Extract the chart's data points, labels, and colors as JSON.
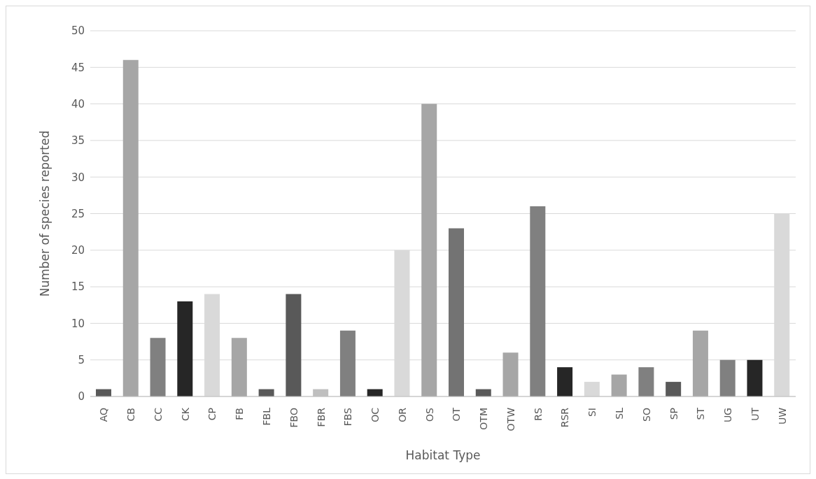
{
  "chart_data": {
    "type": "bar",
    "xlabel": "Habitat Type",
    "ylabel": "Number of species reported",
    "categories": [
      "AQ",
      "CB",
      "CC",
      "CK",
      "CP",
      "FB",
      "FBL",
      "FBO",
      "FBR",
      "FBS",
      "OC",
      "OR",
      "OS",
      "OT",
      "OTM",
      "OTW",
      "RS",
      "RSR",
      "SI",
      "SL",
      "SO",
      "SP",
      "ST",
      "UG",
      "UT",
      "UW"
    ],
    "values": [
      1,
      46,
      8,
      13,
      14,
      8,
      1,
      14,
      1,
      9,
      1,
      20,
      40,
      23,
      1,
      6,
      26,
      4,
      2,
      3,
      4,
      2,
      9,
      5,
      5,
      25
    ],
    "colors": [
      "#595959",
      "#a6a6a6",
      "#808080",
      "#262626",
      "#d9d9d9",
      "#a6a6a6",
      "#595959",
      "#595959",
      "#bfbfbf",
      "#808080",
      "#262626",
      "#d9d9d9",
      "#a6a6a6",
      "#737373",
      "#595959",
      "#a6a6a6",
      "#808080",
      "#262626",
      "#d9d9d9",
      "#a6a6a6",
      "#808080",
      "#595959",
      "#a6a6a6",
      "#808080",
      "#262626",
      "#d9d9d9"
    ],
    "ylim": [
      0,
      50
    ],
    "yticks": [
      0,
      5,
      10,
      15,
      20,
      25,
      30,
      35,
      40,
      45,
      50
    ],
    "grid": "y"
  }
}
